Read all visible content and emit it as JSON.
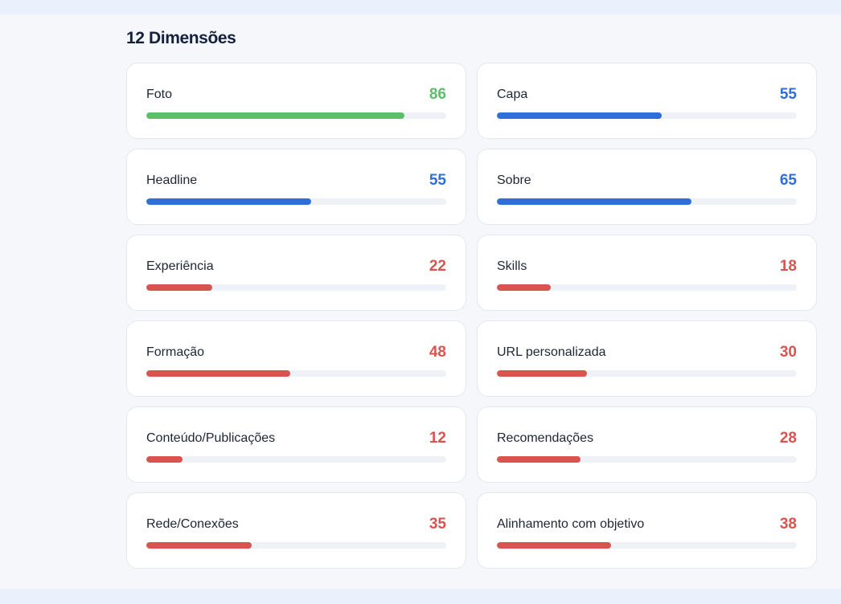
{
  "section": {
    "title": "12 Dimensões"
  },
  "colors": {
    "good": "#5bbf69",
    "mid": "#2f6fdb",
    "low": "#d9534f"
  },
  "dimensions": [
    {
      "label": "Foto",
      "score": "86",
      "level": 0.86,
      "tone": "good"
    },
    {
      "label": "Capa",
      "score": "55",
      "level": 0.55,
      "tone": "mid"
    },
    {
      "label": "Headline",
      "score": "55",
      "level": 0.55,
      "tone": "mid"
    },
    {
      "label": "Sobre",
      "score": "65",
      "level": 0.65,
      "tone": "mid"
    },
    {
      "label": "Experiência",
      "score": "22",
      "level": 0.22,
      "tone": "low"
    },
    {
      "label": "Skills",
      "score": "18",
      "level": 0.18,
      "tone": "low"
    },
    {
      "label": "Formação",
      "score": "48",
      "level": 0.48,
      "tone": "low"
    },
    {
      "label": "URL personalizada",
      "score": "30",
      "level": 0.3,
      "tone": "low"
    },
    {
      "label": "Conteúdo/Publicações",
      "score": "12",
      "level": 0.12,
      "tone": "low"
    },
    {
      "label": "Recomendações",
      "score": "28",
      "level": 0.28,
      "tone": "low"
    },
    {
      "label": "Rede/Conexões",
      "score": "35",
      "level": 0.35,
      "tone": "low"
    },
    {
      "label": "Alinhamento com objetivo",
      "score": "38",
      "level": 0.38,
      "tone": "low"
    }
  ]
}
